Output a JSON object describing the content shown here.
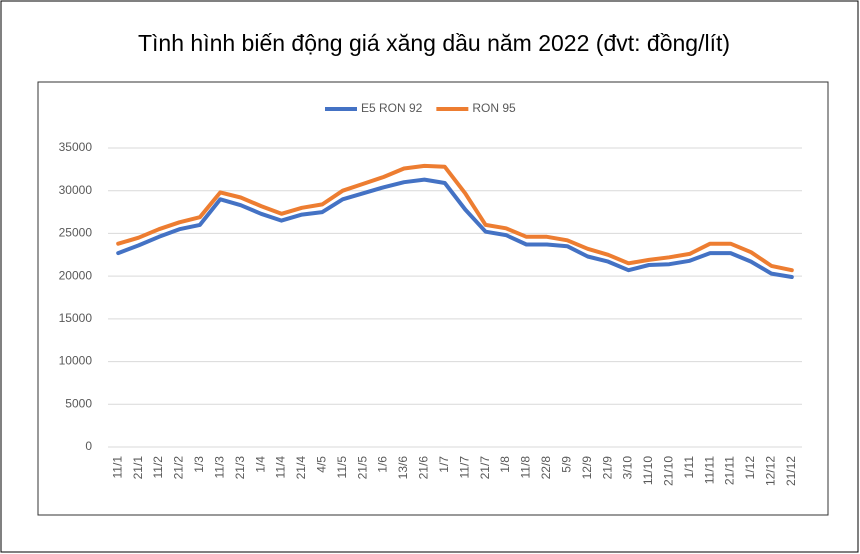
{
  "chart_data": {
    "type": "line",
    "title": "Tình hình biến động giá xăng dầu năm 2022 (đvt: đồng/lít)",
    "categories": [
      "11/1",
      "21/1",
      "11/2",
      "21/2",
      "1/3",
      "11/3",
      "21/3",
      "1/4",
      "11/4",
      "21/4",
      "4/5",
      "11/5",
      "21/5",
      "1/6",
      "13/6",
      "21/6",
      "1/7",
      "11/7",
      "21/7",
      "1/8",
      "11/8",
      "22/8",
      "5/9",
      "12/9",
      "21/9",
      "3/10",
      "11/10",
      "21/10",
      "1/11",
      "11/11",
      "21/11",
      "1/12",
      "12/12",
      "21/12"
    ],
    "series": [
      {
        "name": "E5 RON 92",
        "color": "#4472c4",
        "values": [
          22700,
          23600,
          24600,
          25500,
          26000,
          29000,
          28300,
          27300,
          26500,
          27200,
          27500,
          29000,
          29700,
          30400,
          31000,
          31300,
          30900,
          27800,
          25200,
          24800,
          23700,
          23700,
          23500,
          22300,
          21700,
          20700,
          21300,
          21400,
          21800,
          22700,
          22700,
          21700,
          20300,
          19900
        ]
      },
      {
        "name": "RON 95",
        "color": "#ed7d31",
        "values": [
          23800,
          24500,
          25500,
          26300,
          26900,
          29800,
          29200,
          28200,
          27300,
          28000,
          28400,
          30000,
          30800,
          31600,
          32600,
          32900,
          32800,
          29700,
          26000,
          25600,
          24600,
          24600,
          24200,
          23200,
          22500,
          21500,
          21900,
          22200,
          22600,
          23800,
          23800,
          22800,
          21200,
          20700
        ]
      }
    ],
    "ylim": [
      0,
      35000
    ],
    "yticks": [
      0,
      5000,
      10000,
      15000,
      20000,
      25000,
      30000,
      35000
    ],
    "grid": true,
    "legend": "top"
  }
}
